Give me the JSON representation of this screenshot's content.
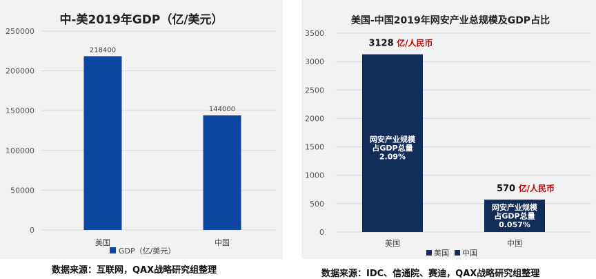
{
  "chart_data": [
    {
      "type": "bar",
      "title": "中-美2019年GDP（亿/美元）",
      "categories": [
        "美国",
        "中国"
      ],
      "series": [
        {
          "name": "GDP（亿/美元）",
          "values": [
            218400,
            144000
          ],
          "color": "#0d47a1"
        }
      ],
      "data_labels": [
        "218400",
        "144000"
      ],
      "ylim": [
        0,
        250000
      ],
      "yticks": [
        "0",
        "50000",
        "100000",
        "150000",
        "200000",
        "250000"
      ],
      "grid": true,
      "legend": "bottom",
      "source": "数据来源：互联网，QAX战略研究组整理"
    },
    {
      "type": "bar",
      "title": "美国-中国2019年网安产业总规模及GDP占比",
      "categories": [
        "美国",
        "中国"
      ],
      "series": [
        {
          "name": "美国",
          "values": [
            3128,
            null
          ],
          "color": "#132d5a"
        },
        {
          "name": "中国",
          "values": [
            null,
            570
          ],
          "color": "#132d5a"
        }
      ],
      "data_labels": [
        {
          "value": "3128",
          "unit": "亿/人民币"
        },
        {
          "value": "570",
          "unit": "亿/人民币"
        }
      ],
      "bar_annotations": [
        [
          "网安产业规模",
          "占GDP总量",
          "2.09%"
        ],
        [
          "网安产业规模",
          "占GDP总量",
          "0.057%"
        ]
      ],
      "ylim": [
        0,
        3500
      ],
      "yticks": [
        "0",
        "500",
        "1000",
        "1500",
        "2000",
        "2500",
        "3000",
        "3500"
      ],
      "grid": true,
      "legend": "bottom",
      "source": "数据来源：IDC、信通院、赛迪，QAX战略研究组整理"
    }
  ],
  "colors": {
    "bar_left": "#0d47a1",
    "bar_right": "#132d5a",
    "label_red": "#c00000",
    "grid": "#d9d9d9"
  },
  "icons": {
    "legend_marker": "square"
  }
}
